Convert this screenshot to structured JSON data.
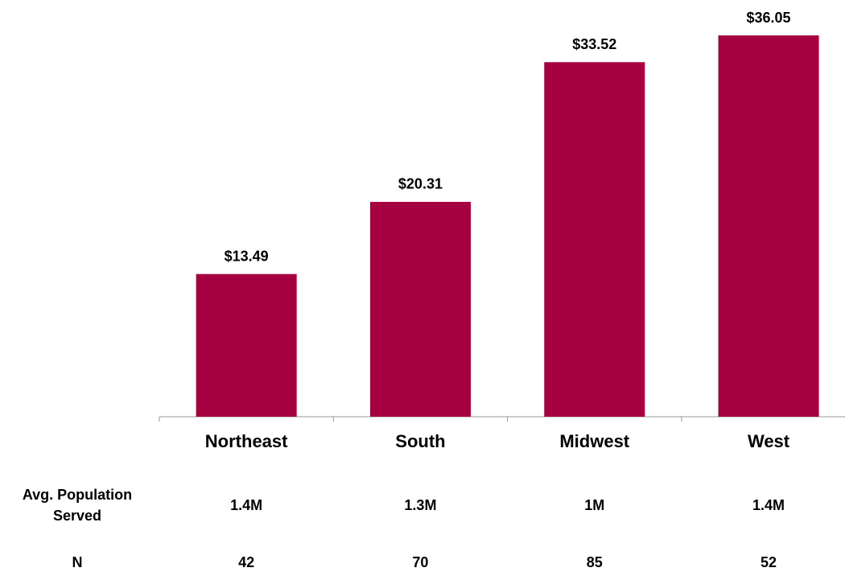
{
  "chart_data": {
    "type": "bar",
    "categories": [
      "Northeast",
      "South",
      "Midwest",
      "West"
    ],
    "values": [
      13.49,
      20.31,
      33.52,
      36.05
    ],
    "value_labels": [
      "$13.49",
      "$20.31",
      "$33.52",
      "$36.05"
    ],
    "color": "#a50040"
  },
  "table": {
    "rows": [
      [
        "Avg. Population Served",
        "1.4M",
        "1.3M",
        "1M",
        "1.4M"
      ],
      [
        "N",
        "42",
        "70",
        "85",
        "52"
      ]
    ]
  }
}
